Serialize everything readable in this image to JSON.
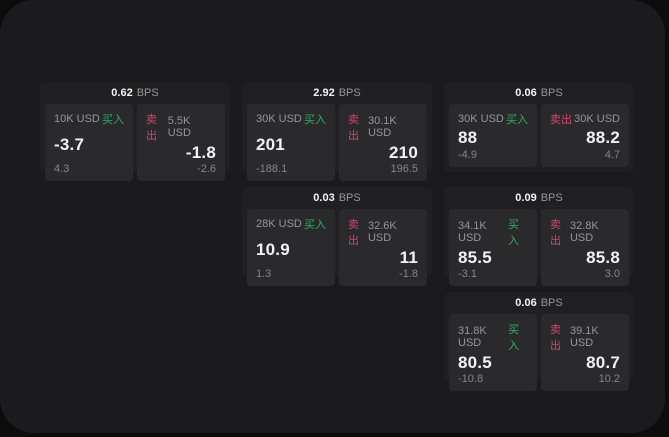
{
  "labels": {
    "bps_unit": "BPS",
    "buy": "买入",
    "sell": "卖出"
  },
  "colors": {
    "outer_bg": "#0c0c0d",
    "page_bg": "#1b1b1d",
    "card_bg": "#202022",
    "panel_bg": "#2a2a2c",
    "text_primary": "#f2f2f2",
    "text_muted": "#96969a",
    "text_sub": "#85858a",
    "buy_green": "#2fae68",
    "sell_red": "#d5446a"
  },
  "cards": [
    {
      "bps": "0.62",
      "buy": {
        "amount": "10K USD",
        "value": "-3.7",
        "sub": "4.3"
      },
      "sell": {
        "amount": "5.5K USD",
        "value": "-1.8",
        "sub": "-2.6"
      }
    },
    {
      "bps": "2.92",
      "buy": {
        "amount": "30K USD",
        "value": "201",
        "sub": "-188.1"
      },
      "sell": {
        "amount": "30.1K USD",
        "value": "210",
        "sub": "196.5"
      }
    },
    {
      "bps": "0.06",
      "buy": {
        "amount": "30K USD",
        "value": "88",
        "sub": "-4.9"
      },
      "sell": {
        "amount": "30K USD",
        "value": "88.2",
        "sub": "4.7"
      }
    },
    {
      "bps": "0.03",
      "buy": {
        "amount": "28K USD",
        "value": "10.9",
        "sub": "1.3"
      },
      "sell": {
        "amount": "32.6K USD",
        "value": "11",
        "sub": "-1.8"
      }
    },
    {
      "bps": "0.09",
      "buy": {
        "amount": "34.1K USD",
        "value": "85.5",
        "sub": "-3.1"
      },
      "sell": {
        "amount": "32.8K USD",
        "value": "85.8",
        "sub": "3.0"
      }
    },
    {
      "bps": "0.06",
      "buy": {
        "amount": "31.8K USD",
        "value": "80.5",
        "sub": "-10.8"
      },
      "sell": {
        "amount": "39.1K USD",
        "value": "80.7",
        "sub": "10.2"
      }
    }
  ]
}
